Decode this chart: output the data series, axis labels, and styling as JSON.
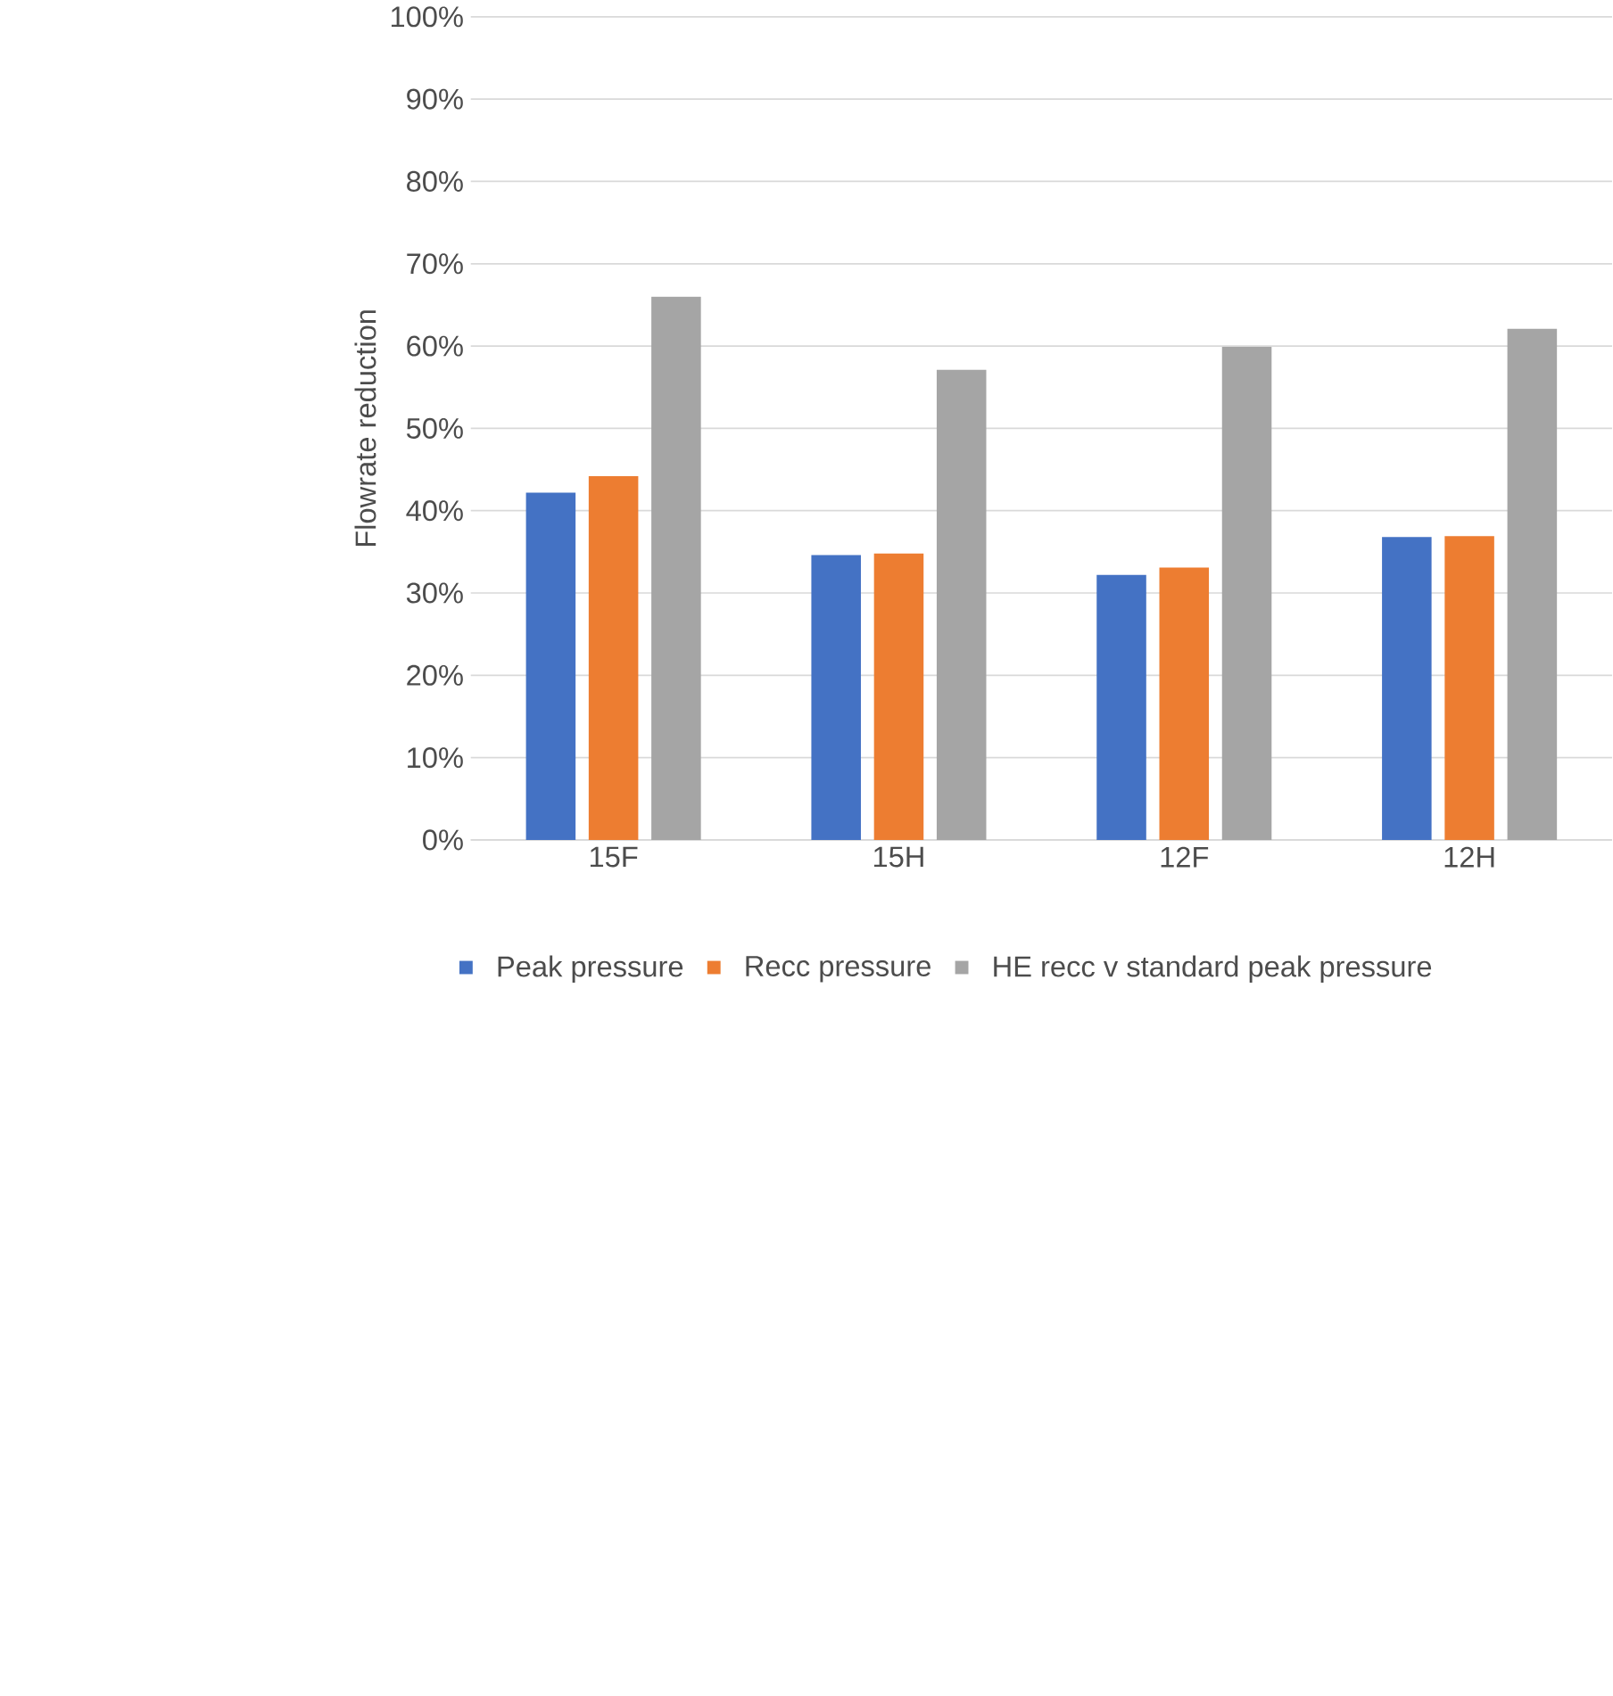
{
  "chart_data": {
    "type": "bar",
    "ylabel": "Flowrate reduction",
    "categories": [
      "15F",
      "15H",
      "12F",
      "12H"
    ],
    "series": [
      {
        "name": "Peak pressure",
        "color": "#4472c4",
        "values": [
          42.2,
          34.6,
          32.2,
          36.8
        ]
      },
      {
        "name": "Recc pressure",
        "color": "#ed7d31",
        "values": [
          44.2,
          34.8,
          33.1,
          36.9
        ]
      },
      {
        "name": "HE recc v standard peak pressure",
        "color": "#a5a5a5",
        "values": [
          66.0,
          57.1,
          59.9,
          62.1
        ]
      }
    ],
    "ylim": [
      0,
      100
    ],
    "yticks": [
      {
        "value": 0,
        "label": "0%"
      },
      {
        "value": 10,
        "label": "10%"
      },
      {
        "value": 20,
        "label": "20%"
      },
      {
        "value": 30,
        "label": "30%"
      },
      {
        "value": 40,
        "label": "40%"
      },
      {
        "value": 50,
        "label": "50%"
      },
      {
        "value": 60,
        "label": "60%"
      },
      {
        "value": 70,
        "label": "70%"
      },
      {
        "value": 80,
        "label": "80%"
      },
      {
        "value": 90,
        "label": "90%"
      },
      {
        "value": 100,
        "label": "100%"
      }
    ],
    "grid": "y",
    "legend": "bottom"
  }
}
